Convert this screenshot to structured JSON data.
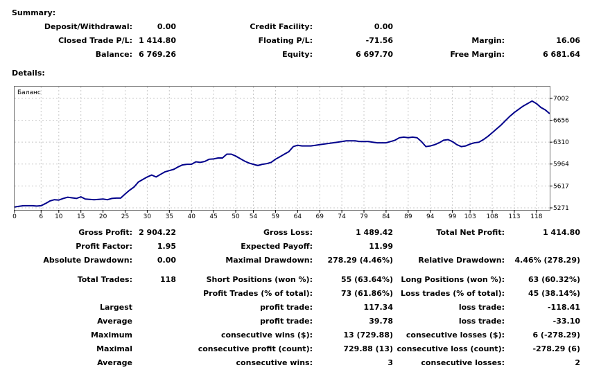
{
  "summary": {
    "title": "Summary:",
    "deposit_withdrawal": {
      "label": "Deposit/Withdrawal:",
      "value": "0.00"
    },
    "credit_facility": {
      "label": "Credit Facility:",
      "value": "0.00"
    },
    "closed_trade_pl": {
      "label": "Closed Trade P/L:",
      "value": "1 414.80"
    },
    "floating_pl": {
      "label": "Floating P/L:",
      "value": "-71.56"
    },
    "margin": {
      "label": "Margin:",
      "value": "16.06"
    },
    "balance": {
      "label": "Balance:",
      "value": "6 769.26"
    },
    "equity": {
      "label": "Equity:",
      "value": "6 697.70"
    },
    "free_margin": {
      "label": "Free Margin:",
      "value": "6 681.64"
    }
  },
  "details": {
    "title": "Details:"
  },
  "chart_data": {
    "type": "line",
    "title": "Баланс",
    "x_ticks": [
      "0",
      "6",
      "10",
      "15",
      "20",
      "25",
      "30",
      "35",
      "40",
      "45",
      "50",
      "54",
      "59",
      "64",
      "69",
      "74",
      "79",
      "84",
      "89",
      "94",
      "99",
      "103",
      "108",
      "113",
      "118"
    ],
    "y_ticks": [
      "7002",
      "6656",
      "6310",
      "5964",
      "5617",
      "5271"
    ],
    "ylim": [
      5271,
      7002
    ],
    "xlim": [
      0,
      121
    ],
    "grid": true,
    "line_color": "#00008b",
    "series": [
      {
        "x": [
          0,
          1,
          2,
          3,
          4,
          5,
          6,
          7,
          8,
          9,
          10,
          11,
          12,
          13,
          14,
          15,
          16,
          17,
          18,
          19,
          20,
          21,
          22,
          23,
          24,
          25,
          26,
          27,
          28,
          29,
          30,
          31,
          32,
          33,
          34,
          35,
          36,
          37,
          38,
          39,
          40,
          41,
          42,
          43,
          44,
          45,
          46,
          47,
          48,
          49,
          50,
          51,
          52,
          53,
          54,
          55,
          56,
          57,
          58,
          59,
          60,
          61,
          62,
          63,
          64,
          65,
          66,
          67,
          68,
          69,
          70,
          71,
          72,
          73,
          74,
          75,
          76,
          77,
          78,
          79,
          80,
          81,
          82,
          83,
          84,
          85,
          86,
          87,
          88,
          89,
          90,
          91,
          92,
          93,
          94,
          95,
          96,
          97,
          98,
          99,
          100,
          101,
          102,
          103,
          104,
          105,
          106,
          107,
          108,
          109,
          110,
          111,
          112,
          113,
          114,
          115,
          116,
          117,
          118,
          119,
          120,
          121
        ],
        "y": [
          5285,
          5295,
          5305,
          5305,
          5305,
          5300,
          5305,
          5340,
          5380,
          5400,
          5395,
          5420,
          5440,
          5430,
          5420,
          5445,
          5410,
          5405,
          5400,
          5405,
          5410,
          5400,
          5420,
          5425,
          5425,
          5490,
          5550,
          5600,
          5680,
          5720,
          5760,
          5790,
          5760,
          5800,
          5840,
          5860,
          5880,
          5920,
          5950,
          5960,
          5960,
          6000,
          5990,
          6005,
          6040,
          6045,
          6060,
          6060,
          6120,
          6120,
          6090,
          6050,
          6010,
          5980,
          5960,
          5940,
          5960,
          5970,
          5990,
          6040,
          6080,
          6120,
          6160,
          6240,
          6260,
          6250,
          6250,
          6250,
          6260,
          6270,
          6280,
          6290,
          6300,
          6310,
          6320,
          6330,
          6330,
          6330,
          6320,
          6320,
          6320,
          6310,
          6300,
          6300,
          6300,
          6320,
          6340,
          6380,
          6390,
          6380,
          6390,
          6380,
          6320,
          6240,
          6250,
          6270,
          6300,
          6340,
          6350,
          6320,
          6270,
          6240,
          6250,
          6280,
          6300,
          6310,
          6350,
          6400,
          6460,
          6520,
          6580,
          6650,
          6720,
          6780,
          6830,
          6880,
          6920,
          6960,
          6920,
          6860,
          6820,
          6760
        ]
      }
    ]
  },
  "stats": {
    "gross_profit": {
      "label": "Gross Profit:",
      "value": "2 904.22"
    },
    "gross_loss": {
      "label": "Gross Loss:",
      "value": "1 489.42"
    },
    "total_net_profit": {
      "label": "Total Net Profit:",
      "value": "1 414.80"
    },
    "profit_factor": {
      "label": "Profit Factor:",
      "value": "1.95"
    },
    "expected_payoff": {
      "label": "Expected Payoff:",
      "value": "11.99"
    },
    "absolute_drawdown": {
      "label": "Absolute Drawdown:",
      "value": "0.00"
    },
    "maximal_drawdown": {
      "label": "Maximal Drawdown:",
      "value": "278.29 (4.46%)"
    },
    "relative_drawdown": {
      "label": "Relative Drawdown:",
      "value": "4.46% (278.29)"
    },
    "total_trades": {
      "label": "Total Trades:",
      "value": "118"
    },
    "short_positions": {
      "label": "Short Positions (won %):",
      "value": "55 (63.64%)"
    },
    "long_positions": {
      "label": "Long Positions (won %):",
      "value": "63 (60.32%)"
    },
    "profit_trades": {
      "label": "Profit Trades (% of total):",
      "value": "73 (61.86%)"
    },
    "loss_trades": {
      "label": "Loss trades (% of total):",
      "value": "45 (38.14%)"
    },
    "largest": {
      "label": "Largest",
      "profit_label": "profit trade:",
      "profit_value": "117.34",
      "loss_label": "loss trade:",
      "loss_value": "-118.41"
    },
    "average": {
      "label": "Average",
      "profit_label": "profit trade:",
      "profit_value": "39.78",
      "loss_label": "loss trade:",
      "loss_value": "-33.10"
    },
    "maximum": {
      "label": "Maximum",
      "profit_label": "consecutive wins ($):",
      "profit_value": "13 (729.88)",
      "loss_label": "consecutive losses ($):",
      "loss_value": "6 (-278.29)"
    },
    "maximal": {
      "label": "Maximal",
      "profit_label": "consecutive profit (count):",
      "profit_value": "729.88 (13)",
      "loss_label": "consecutive loss (count):",
      "loss_value": "-278.29 (6)"
    },
    "average2": {
      "label": "Average",
      "profit_label": "consecutive wins:",
      "profit_value": "3",
      "loss_label": "consecutive losses:",
      "loss_value": "2"
    }
  }
}
